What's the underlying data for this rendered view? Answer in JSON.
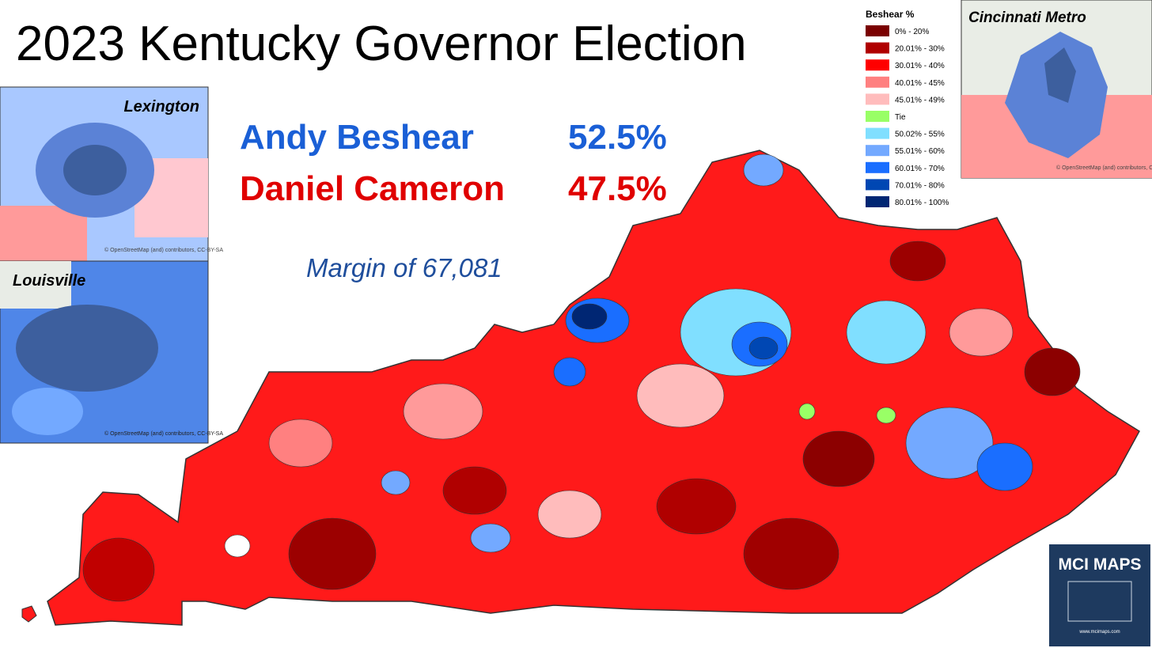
{
  "header": {
    "title": "2023 Kentucky Governor Election"
  },
  "results": [
    {
      "name": "Andy Beshear",
      "share": "52.5%",
      "color": "#1a5fd6"
    },
    {
      "name": "Daniel Cameron",
      "share": "47.5%",
      "color": "#e00000"
    }
  ],
  "margin": "Margin of 67,081",
  "legend": {
    "title": "Beshear  %",
    "items": [
      {
        "label": "0% - 20%",
        "color": "#7a0000"
      },
      {
        "label": "20.01% - 30%",
        "color": "#b00000"
      },
      {
        "label": "30.01% - 40%",
        "color": "#ff0000"
      },
      {
        "label": "40.01% - 45%",
        "color": "#ff8080"
      },
      {
        "label": "45.01% - 49%",
        "color": "#ffbcbc"
      },
      {
        "label": "Tie",
        "color": "#99ff66"
      },
      {
        "label": "50.02% - 55%",
        "color": "#80dfff"
      },
      {
        "label": "55.01% - 60%",
        "color": "#73a9ff"
      },
      {
        "label": "60.01% - 70%",
        "color": "#1a6eff"
      },
      {
        "label": "70.01% - 80%",
        "color": "#0047b3"
      },
      {
        "label": "80.01% - 100%",
        "color": "#002673"
      }
    ]
  },
  "insets": [
    {
      "label": "Lexington",
      "attribution": "© OpenStreetMap (and) contributors, CC-BY-SA"
    },
    {
      "label": "Louisville",
      "attribution": "© OpenStreetMap (and) contributors, CC-BY-SA"
    },
    {
      "label": "Cincinnati Metro",
      "attribution": "© OpenStreetMap (and) contributors, CC-BY-SA"
    }
  ],
  "logo": {
    "title": "MCI MAPS",
    "url": "www.mcimaps.com"
  }
}
